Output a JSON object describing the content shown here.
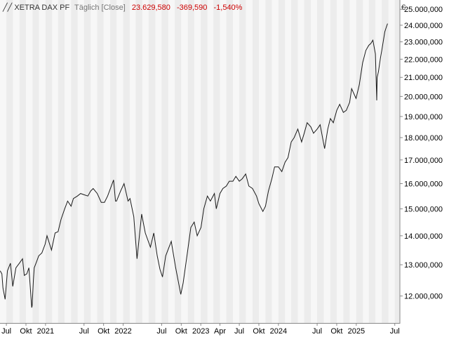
{
  "header": {
    "instrument": "XETRA DAX PF",
    "frequency": "Täglich [Close]",
    "last": "23.629,580",
    "change": "-369,590",
    "change_pct": "-1,540%",
    "currency": "€"
  },
  "colors": {
    "background": "#ffffff",
    "plot_bg": "#f7f7f7",
    "band": "#ececec",
    "line": "#1a1a1a",
    "negative": "#cc0000",
    "header_gray": "#777777",
    "axis": "#888888"
  },
  "chart_data": {
    "type": "line",
    "yscale": "log",
    "ylim": [
      11200,
      25600
    ],
    "xlim": [
      "2020-06-01",
      "2025-07-25"
    ],
    "y_ticks": [
      {
        "value": 12000,
        "label": "12.000,000"
      },
      {
        "value": 13000,
        "label": "13.000,000"
      },
      {
        "value": 14000,
        "label": "14.000,000"
      },
      {
        "value": 15000,
        "label": "15.000,000"
      },
      {
        "value": 16000,
        "label": "16.000,000"
      },
      {
        "value": 17000,
        "label": "17.000,000"
      },
      {
        "value": 18000,
        "label": "18.000,000"
      },
      {
        "value": 19000,
        "label": "19.000,000"
      },
      {
        "value": 20000,
        "label": "20.000,000"
      },
      {
        "value": 21000,
        "label": "21.000,000"
      },
      {
        "value": 22000,
        "label": "22.000,000"
      },
      {
        "value": 23000,
        "label": "23.000,000"
      },
      {
        "value": 24000,
        "label": "24.000,000"
      },
      {
        "value": 25000,
        "label": "25.000,000"
      }
    ],
    "x_ticks": [
      {
        "date": "2020-07-01",
        "label": "Jul"
      },
      {
        "date": "2020-10-01",
        "label": "Okt"
      },
      {
        "date": "2021-01-01",
        "label": "2021"
      },
      {
        "date": "2021-07-01",
        "label": "Jul"
      },
      {
        "date": "2021-10-01",
        "label": "Okt"
      },
      {
        "date": "2022-01-01",
        "label": "2022"
      },
      {
        "date": "2022-07-01",
        "label": "Jul"
      },
      {
        "date": "2022-10-01",
        "label": "Okt"
      },
      {
        "date": "2023-01-01",
        "label": "2023"
      },
      {
        "date": "2023-04-01",
        "label": "Apr"
      },
      {
        "date": "2023-07-01",
        "label": "Jul"
      },
      {
        "date": "2023-10-01",
        "label": "Okt"
      },
      {
        "date": "2024-01-01",
        "label": "2024"
      },
      {
        "date": "2024-07-01",
        "label": "Jul"
      },
      {
        "date": "2024-10-01",
        "label": "Okt"
      },
      {
        "date": "2025-01-01",
        "label": "2025"
      },
      {
        "date": "2025-07-01",
        "label": "Jul"
      }
    ],
    "band_months": [
      "2020-07",
      "2020-09",
      "2020-11",
      "2021-01",
      "2021-03",
      "2021-05",
      "2021-07",
      "2021-09",
      "2021-11",
      "2022-01",
      "2022-03",
      "2022-05",
      "2022-07",
      "2022-09",
      "2022-11",
      "2023-01",
      "2023-03",
      "2023-05",
      "2023-07",
      "2023-09",
      "2023-11",
      "2024-01",
      "2024-03",
      "2024-05",
      "2024-07",
      "2024-09",
      "2024-11",
      "2025-01",
      "2025-03",
      "2025-05",
      "2025-07"
    ],
    "series": [
      {
        "x": [
          "2020-06-02",
          "2020-06-10",
          "2020-06-15",
          "2020-06-25",
          "2020-07-06",
          "2020-07-20",
          "2020-07-31",
          "2020-08-15",
          "2020-08-31",
          "2020-09-15",
          "2020-09-23",
          "2020-10-05",
          "2020-10-15",
          "2020-10-28",
          "2020-10-30",
          "2020-11-05",
          "2020-11-09",
          "2020-11-20",
          "2020-11-30",
          "2020-12-15",
          "2020-12-30",
          "2021-01-08",
          "2021-01-29",
          "2021-02-15",
          "2021-03-01",
          "2021-03-15",
          "2021-04-01",
          "2021-04-15",
          "2021-05-01",
          "2021-05-12",
          "2021-05-31",
          "2021-06-15",
          "2021-07-01",
          "2021-07-19",
          "2021-08-01",
          "2021-08-13",
          "2021-09-01",
          "2021-09-20",
          "2021-10-05",
          "2021-10-20",
          "2021-11-17",
          "2021-11-26",
          "2021-12-01",
          "2021-12-20",
          "2022-01-05",
          "2022-01-24",
          "2022-02-02",
          "2022-02-20",
          "2022-03-07",
          "2022-03-10",
          "2022-03-29",
          "2022-04-15",
          "2022-05-09",
          "2022-05-25",
          "2022-06-10",
          "2022-06-23",
          "2022-07-05",
          "2022-07-20",
          "2022-08-15",
          "2022-09-05",
          "2022-09-29",
          "2022-10-10",
          "2022-10-28",
          "2022-11-15",
          "2022-12-01",
          "2022-12-15",
          "2023-01-02",
          "2023-01-15",
          "2023-02-01",
          "2023-02-15",
          "2023-03-06",
          "2023-03-15",
          "2023-04-01",
          "2023-04-15",
          "2023-05-01",
          "2023-05-15",
          "2023-06-01",
          "2023-06-15",
          "2023-07-01",
          "2023-07-15",
          "2023-07-31",
          "2023-08-15",
          "2023-09-01",
          "2023-09-20",
          "2023-10-01",
          "2023-10-20",
          "2023-11-01",
          "2023-11-15",
          "2023-12-01",
          "2023-12-14",
          "2024-01-01",
          "2024-01-17",
          "2024-02-01",
          "2024-02-15",
          "2024-03-01",
          "2024-03-15",
          "2024-04-01",
          "2024-04-19",
          "2024-05-01",
          "2024-05-15",
          "2024-06-01",
          "2024-06-14",
          "2024-07-01",
          "2024-07-15",
          "2024-08-05",
          "2024-08-20",
          "2024-09-01",
          "2024-09-15",
          "2024-10-01",
          "2024-10-15",
          "2024-11-01",
          "2024-11-15",
          "2024-12-01",
          "2024-12-10",
          "2024-12-31",
          "2025-01-15",
          "2025-01-31",
          "2025-02-15",
          "2025-03-01",
          "2025-03-10",
          "2025-03-20",
          "2025-04-01",
          "2025-04-07",
          "2025-04-09",
          "2025-04-15",
          "2025-04-25",
          "2025-05-01",
          "2025-05-15",
          "2025-05-20",
          "2025-05-28"
        ],
        "y": [
          12800,
          12700,
          12250,
          11900,
          12800,
          13050,
          12300,
          12900,
          13050,
          13200,
          12650,
          12700,
          12900,
          11650,
          11700,
          12500,
          12900,
          13100,
          13300,
          13400,
          13700,
          14000,
          13500,
          14100,
          14150,
          14600,
          15000,
          15300,
          15100,
          15400,
          15500,
          15600,
          15550,
          15500,
          15700,
          15800,
          15600,
          15250,
          15250,
          15500,
          16150,
          15300,
          15300,
          15700,
          16000,
          15300,
          15400,
          14700,
          13200,
          13400,
          14800,
          14100,
          13600,
          14100,
          13300,
          12850,
          12600,
          13300,
          13800,
          12900,
          12050,
          12400,
          13300,
          14300,
          14500,
          14000,
          14300,
          15000,
          15500,
          15300,
          15600,
          15000,
          15600,
          15800,
          15900,
          16100,
          16100,
          16300,
          16100,
          16200,
          16400,
          15900,
          15800,
          15500,
          15200,
          14900,
          15100,
          15700,
          16200,
          16700,
          16700,
          16500,
          16900,
          17100,
          17800,
          18000,
          18400,
          17800,
          18200,
          18700,
          18500,
          18200,
          18400,
          18600,
          17500,
          18400,
          18900,
          18700,
          19300,
          19600,
          19200,
          19300,
          19700,
          20400,
          19900,
          20600,
          21800,
          22500,
          22800,
          22900,
          23100,
          22300,
          19800,
          21000,
          21300,
          22100,
          22500,
          23600,
          23800,
          24100
        ]
      }
    ]
  }
}
